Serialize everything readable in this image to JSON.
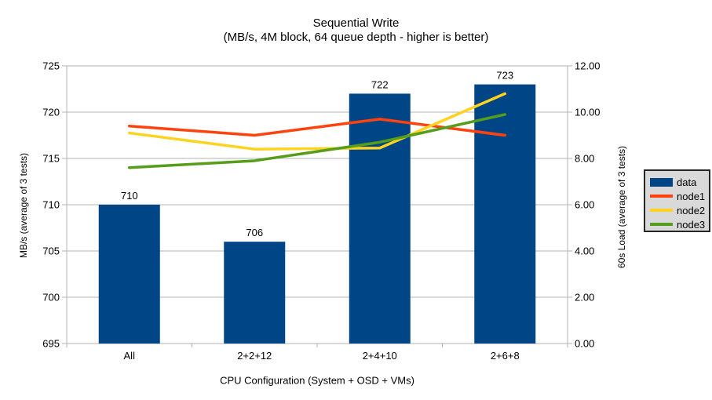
{
  "chart_data": {
    "type": "bar+line",
    "title": "Sequential Write",
    "subtitle": "(MB/s, 4M block, 64 queue depth - higher is better)",
    "categories": [
      "All",
      "2+2+12",
      "2+4+10",
      "2+6+8"
    ],
    "series": [
      {
        "name": "data",
        "type": "bar",
        "axis": "left",
        "color": "#004586",
        "values": [
          710,
          706,
          722,
          723
        ],
        "labels": [
          "710",
          "706",
          "722",
          "723"
        ]
      },
      {
        "name": "node1",
        "type": "line",
        "axis": "right",
        "color": "#ff420e",
        "values": [
          9.4,
          9.0,
          9.7,
          9.0
        ]
      },
      {
        "name": "node2",
        "type": "line",
        "axis": "right",
        "color": "#ffd320",
        "values": [
          9.1,
          8.4,
          8.45,
          10.8
        ]
      },
      {
        "name": "node3",
        "type": "line",
        "axis": "right",
        "color": "#579d1c",
        "values": [
          7.6,
          7.9,
          8.7,
          9.9
        ]
      }
    ],
    "xlabel": "CPU Configuration (System + OSD + VMs)",
    "left_axis": {
      "label": "MB/s (average of 3 tests)",
      "min": 695,
      "max": 725,
      "step": 5,
      "tick_labels": [
        "695",
        "700",
        "705",
        "710",
        "715",
        "720",
        "725"
      ]
    },
    "right_axis": {
      "label": "60s Load (average of 3 tests)",
      "min": 0,
      "max": 12,
      "step": 2,
      "tick_labels": [
        "0.00",
        "2.00",
        "4.00",
        "6.00",
        "8.00",
        "10.00",
        "12.00"
      ]
    },
    "grid": true,
    "legend": {
      "position": "right",
      "items": [
        {
          "label": "data",
          "color": "#004586",
          "swatch": "box"
        },
        {
          "label": "node1",
          "color": "#ff420e",
          "swatch": "line"
        },
        {
          "label": "node2",
          "color": "#ffd320",
          "swatch": "line"
        },
        {
          "label": "node3",
          "color": "#579d1c",
          "swatch": "line"
        }
      ]
    },
    "colors": {
      "background": "#ffffff",
      "grid": "#b3b3b3",
      "axis": "#b3b3b3",
      "text": "#000000",
      "legend_bg": "#d9d9d9",
      "legend_border": "#262626"
    }
  }
}
